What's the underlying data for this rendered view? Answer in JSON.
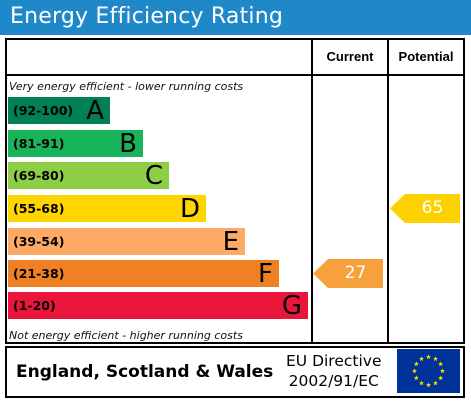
{
  "title": "Energy Efficiency Rating",
  "columns": {
    "current": "Current",
    "potential": "Potential"
  },
  "top_caption": "Very energy efficient - lower running costs",
  "bottom_caption": "Not energy efficient - higher running costs",
  "bands": [
    {
      "range": "(92-100)",
      "letter": "A",
      "color": "#008054"
    },
    {
      "range": "(81-91)",
      "letter": "B",
      "color": "#19b459"
    },
    {
      "range": "(69-80)",
      "letter": "C",
      "color": "#8dce46"
    },
    {
      "range": "(55-68)",
      "letter": "D",
      "color": "#ffd500"
    },
    {
      "range": "(39-54)",
      "letter": "E",
      "color": "#fcaa65"
    },
    {
      "range": "(21-38)",
      "letter": "F",
      "color": "#ef8023"
    },
    {
      "range": "(1-20)",
      "letter": "G",
      "color": "#e9153b"
    }
  ],
  "current": {
    "value": "27",
    "band": "F",
    "color": "#f7a13c"
  },
  "potential": {
    "value": "65",
    "band": "D",
    "color": "#fdd100"
  },
  "footer": {
    "region": "England, Scotland & Wales",
    "directive_line1": "EU Directive",
    "directive_line2": "2002/91/EC",
    "flag_color": "#003399",
    "star_color": "#ffdd00"
  }
}
